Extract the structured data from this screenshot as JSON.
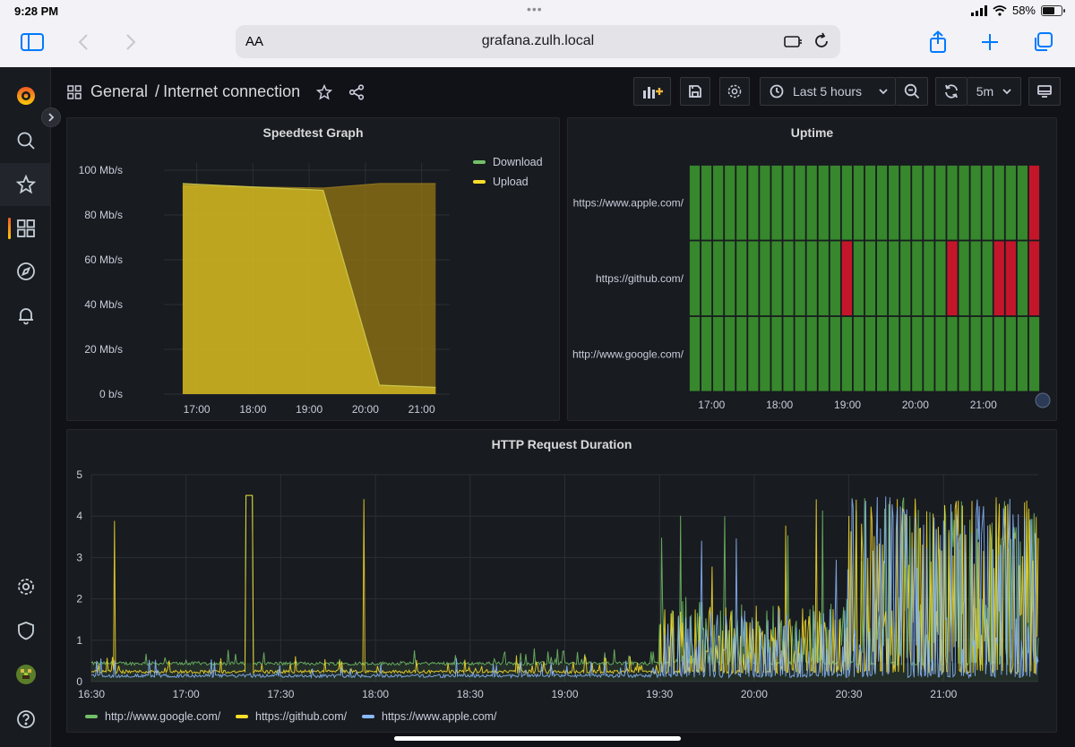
{
  "status_bar": {
    "time": "9:28 PM",
    "battery": "58%"
  },
  "browser": {
    "aa_label": "AA",
    "url": "grafana.zulh.local"
  },
  "breadcrumb": {
    "folder": "General",
    "separator": "/",
    "dashboard": "Internet connection"
  },
  "toolbar": {
    "time_range": "Last 5 hours",
    "refresh_interval": "5m"
  },
  "colors": {
    "download": "#73bf69",
    "upload": "#fade2a",
    "up": "#37872d",
    "down": "#c4162a",
    "google": "#73bf69",
    "github": "#fade2a",
    "apple": "#8ab8ff"
  },
  "sidebar": {
    "items": [
      "grafana-logo",
      "search",
      "starred",
      "dashboards",
      "explore",
      "alerting",
      "configuration",
      "server-admin",
      "profile",
      "help"
    ]
  },
  "speedtest": {
    "title": "Speedtest Graph",
    "legend": [
      "Download",
      "Upload"
    ],
    "chart_data": {
      "type": "area",
      "title": "Speedtest Graph",
      "y_ticks": [
        "100 Mb/s",
        "80 Mb/s",
        "60 Mb/s",
        "40 Mb/s",
        "20 Mb/s",
        "0 b/s"
      ],
      "ylim": [
        0,
        100
      ],
      "x_ticks": [
        "17:00",
        "18:00",
        "19:00",
        "20:00",
        "21:00"
      ],
      "series": [
        {
          "name": "Download",
          "x": [
            "16:45",
            "19:15",
            "20:15",
            "21:15"
          ],
          "values": [
            93,
            92,
            94,
            94
          ]
        },
        {
          "name": "Upload",
          "x": [
            "16:45",
            "19:15",
            "20:15",
            "21:15"
          ],
          "values": [
            94,
            91,
            4,
            3
          ]
        }
      ]
    }
  },
  "uptime": {
    "title": "Uptime",
    "chart_data": {
      "type": "heatmap",
      "title": "Uptime",
      "rows": [
        "https://www.apple.com/",
        "https://github.com/",
        "http://www.google.com/"
      ],
      "x_ticks": [
        "17:00",
        "18:00",
        "19:00",
        "20:00",
        "21:00"
      ],
      "columns": 30,
      "down_columns": [
        [
          29
        ],
        [
          13,
          22,
          26,
          27,
          29
        ],
        []
      ]
    }
  },
  "http": {
    "title": "HTTP Request Duration",
    "legend": [
      "http://www.google.com/",
      "https://github.com/",
      "https://www.apple.com/"
    ],
    "chart_data": {
      "type": "line",
      "title": "HTTP Request Duration",
      "y_ticks": [
        "5",
        "4",
        "3",
        "2",
        "1",
        "0"
      ],
      "ylim": [
        0,
        5
      ],
      "x_ticks": [
        "16:30",
        "17:00",
        "17:30",
        "18:00",
        "18:30",
        "19:00",
        "19:30",
        "20:00",
        "20:30",
        "21:00"
      ],
      "series": [
        {
          "name": "http://www.google.com/",
          "baseline": 0.4,
          "max": 4.5
        },
        {
          "name": "https://github.com/",
          "baseline": 0.2,
          "max": 4.5
        },
        {
          "name": "https://www.apple.com/",
          "baseline": 0.1,
          "max": 4.5
        }
      ]
    }
  }
}
